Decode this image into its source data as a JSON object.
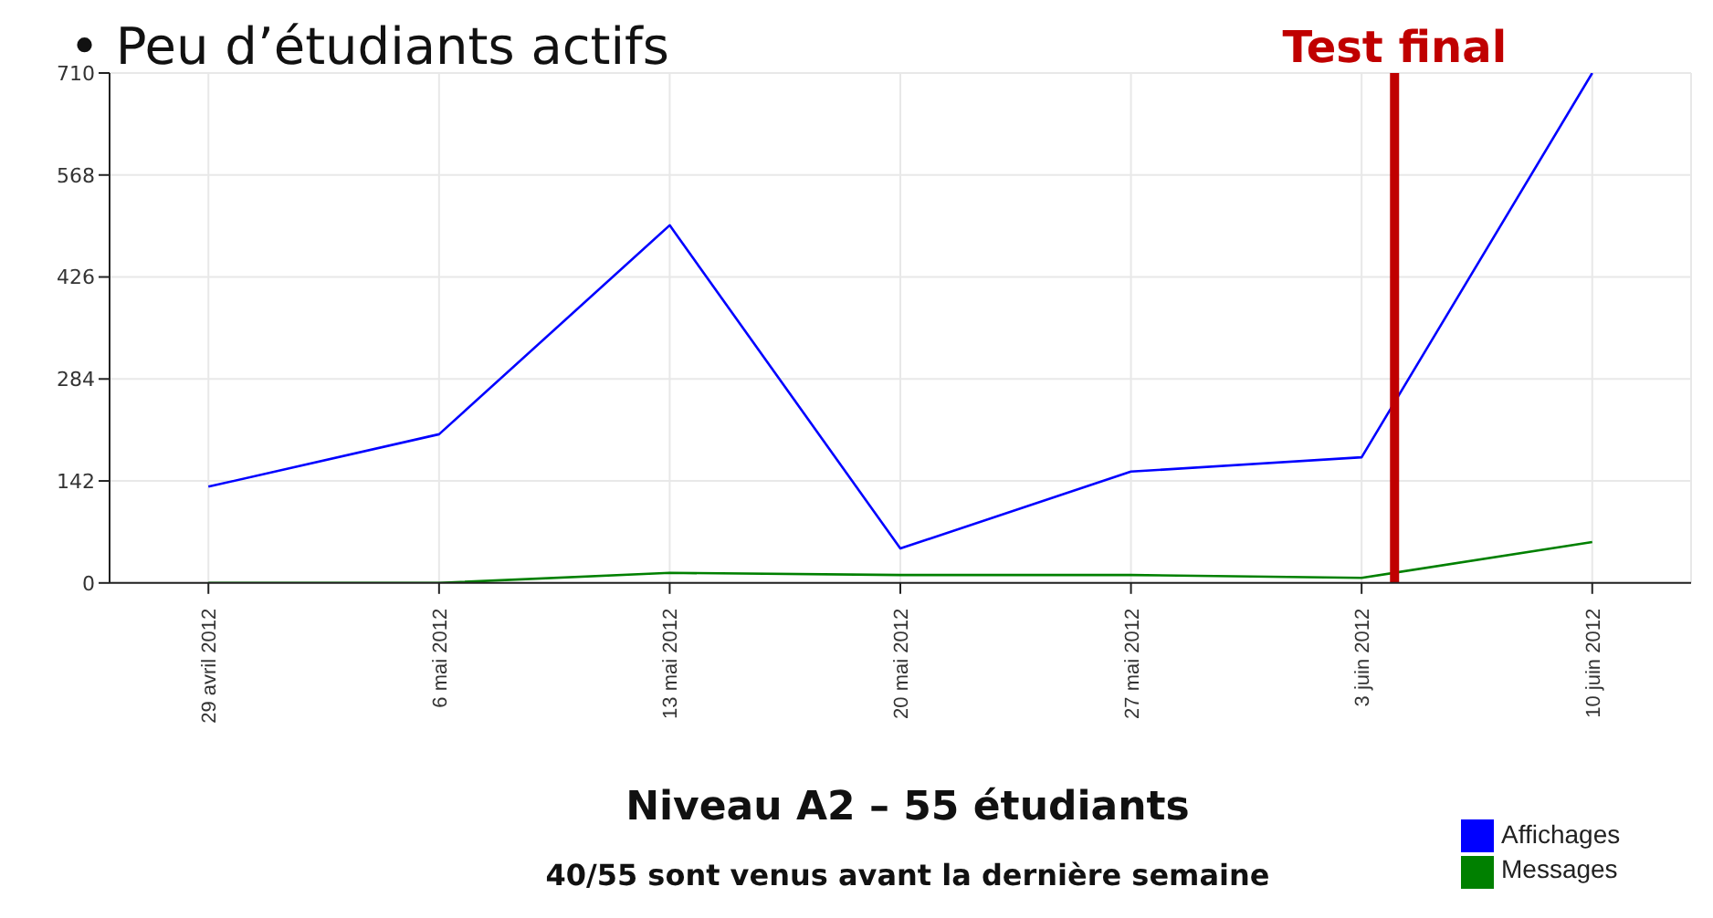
{
  "chart_data": {
    "type": "line",
    "title": "• Peu d’étudiants actifs",
    "xlabel": "Niveau A2 – 55 étudiants",
    "annotations": [
      "40/55 sont venus avant la dernière semaine"
    ],
    "x": [
      "2012-04-29",
      "2012-05-06",
      "2012-05-13",
      "2012-05-20",
      "2012-05-27",
      "2012-06-03",
      "2012-06-10"
    ],
    "series": [
      {
        "name": "Affichages",
        "color": "#0000ff",
        "values": [
          134,
          207,
          498,
          48,
          155,
          175,
          710
        ]
      },
      {
        "name": "Messages",
        "color": "#008000",
        "values": [
          0,
          0,
          14,
          11,
          11,
          7,
          57
        ]
      }
    ],
    "xlim": [
      "2012-04-26",
      "2012-06-13"
    ],
    "xticks": [
      {
        "value": "2012-04-29",
        "label": "29 avril 2012"
      },
      {
        "value": "2012-05-06",
        "label": "6 mai 2012"
      },
      {
        "value": "2012-05-13",
        "label": "13 mai 2012"
      },
      {
        "value": "2012-05-20",
        "label": "20 mai 2012"
      },
      {
        "value": "2012-05-27",
        "label": "27 mai 2012"
      },
      {
        "value": "2012-06-03",
        "label": "3 juin 2012"
      },
      {
        "value": "2012-06-10",
        "label": "10 juin 2012"
      }
    ],
    "ylim": [
      0,
      710
    ],
    "yticks": [
      0,
      142,
      284,
      426,
      568,
      710
    ],
    "ref_lines": [
      {
        "axis": "x",
        "value": "2012-06-04",
        "label": "Test final",
        "color": "#c00000"
      }
    ],
    "grid": true,
    "legend": "bottom right",
    "marker": "none",
    "line_style": "solid"
  }
}
